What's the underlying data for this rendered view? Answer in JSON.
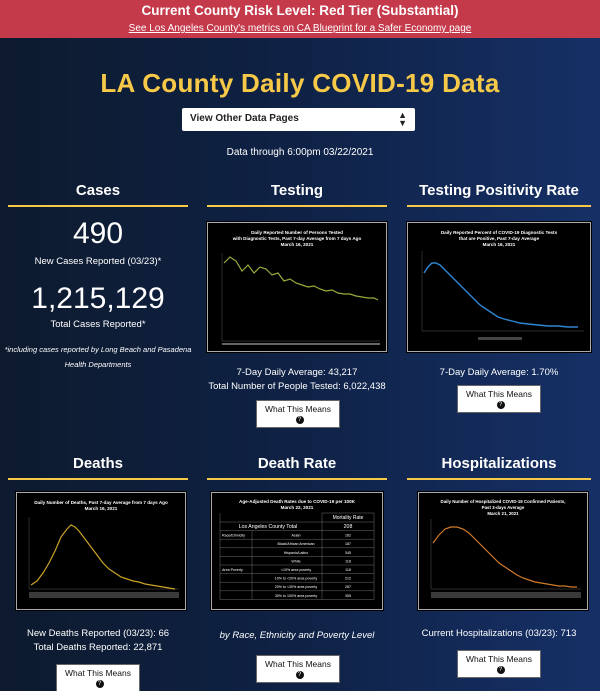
{
  "banner": {
    "title": "Current County Risk Level: Red Tier (Substantial)",
    "link": "See Los Angeles County's metrics on CA Blueprint for a Safer Economy page"
  },
  "page_title": "LA County Daily COVID-19 Data",
  "select": {
    "value": "View Other Data Pages"
  },
  "data_through": "Data through 6:00pm 03/22/2021",
  "cases": {
    "title": "Cases",
    "new_value": "490",
    "new_label": "New Cases Reported (03/23)*",
    "total_value": "1,215,129",
    "total_label": "Total Cases Reported*",
    "note": "*including cases reported by Long Beach and Pasadena Health Departments"
  },
  "testing": {
    "title": "Testing",
    "chart_title": "Daily Reported Number of Persons Tested with Diagnostic Tests, Past 7-day Average from 7 days Ago",
    "chart_date": "March 16, 2021",
    "stat1": "7-Day Daily Average: 43,217",
    "stat2": "Total Number of People Tested: 6,022,438",
    "button": "What This Means"
  },
  "positivity": {
    "title": "Testing Positivity Rate",
    "chart_title": "Daily Reported Percent of COVID-19 Diagnostic Tests that are Positive, Past 7-day Average",
    "chart_date": "March 16, 2021",
    "stat1": "7-Day Daily Average: 1.70%",
    "button": "What This Means"
  },
  "deaths": {
    "title": "Deaths",
    "chart_title": "Daily Number of Deaths, Past 7-day Average from 7 days Ago",
    "chart_date": "March 16, 2021",
    "stat1": "New Deaths Reported (03/23): 66",
    "stat2": "Total Deaths Reported: 22,871",
    "button": "What This Means"
  },
  "death_rate": {
    "title": "Death Rate",
    "table_title": "Age-Adjusted Death Rates due to COVID-19 per 100K",
    "table_date": "March 22, 2021",
    "col_header": "Mortality Rate",
    "rows": [
      {
        "group": "Los Angeles County Total",
        "sub": "",
        "value": "208"
      },
      {
        "group": "Race/Ethnicity",
        "sub": "Asian",
        "value": "162"
      },
      {
        "group": "",
        "sub": "Black/African American",
        "value": "187"
      },
      {
        "group": "",
        "sub": "Hispanic/Latino",
        "value": "345"
      },
      {
        "group": "",
        "sub": "White",
        "value": "118"
      },
      {
        "group": "Area Poverty",
        "sub": "<10% area poverty",
        "value": "118"
      },
      {
        "group": "",
        "sub": "10% to <20% area poverty",
        "value": "212"
      },
      {
        "group": "",
        "sub": "20% to <30% area poverty",
        "value": "287"
      },
      {
        "group": "",
        "sub": "30% to 100% area poverty",
        "value": "355"
      }
    ],
    "caption": "by Race, Ethnicity and Poverty Level",
    "button": "What This Means"
  },
  "hospitalizations": {
    "title": "Hospitalizations",
    "chart_title": "Daily Number of Hospitalized COVID-19 Confirmed Patients, Past 3-days Average",
    "chart_date": "March 21, 2021",
    "stat1": "Current Hospitalizations (03/23): 713",
    "button": "What This Means"
  },
  "colors": {
    "banner": "#c43a4b",
    "accent_gold": "#f7c948",
    "testing_line": "#9aaa3a",
    "positivity_line": "#2f86d4",
    "deaths_line": "#c9a227",
    "hosp_line": "#d07a2a"
  }
}
